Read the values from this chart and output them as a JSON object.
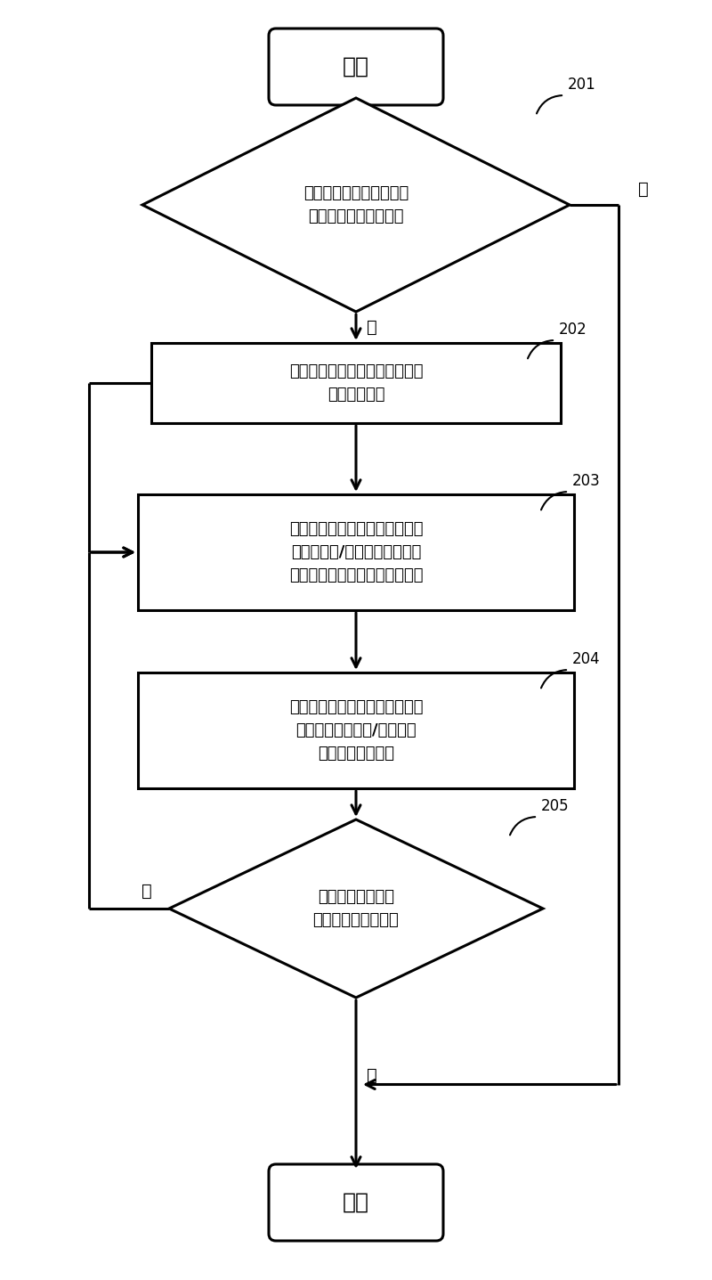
{
  "bg_color": "#ffffff",
  "line_color": "#000000",
  "text_color": "#000000",
  "fig_width": 8.0,
  "fig_height": 14.37,
  "start_text": "开始",
  "end_text": "结束",
  "d201_text": "基站判断是否需要对小区\n的多个天线进行校正？",
  "d201_label": "201",
  "b202_text": "基站从所述小区的多个天线中选\n择一参考天线",
  "b202_label": "202",
  "b203_text": "基站对待调整天线对应的射频链\n路的增益和/或相位进行调整，\n通知用户设备进入天线校正模式",
  "b203_label": "203",
  "b204_text": "用户设备测量待调整天线对应的\n射频链路的增益和/或相位，\n并上报给所述基站",
  "b204_label": "204",
  "d205_text": "基站判断是否需要\n继续进行天线校正？",
  "d205_label": "205",
  "yes_text": "是",
  "no_text": "否"
}
